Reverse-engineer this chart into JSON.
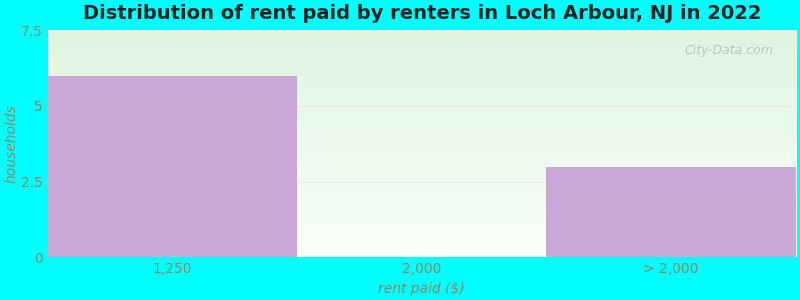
{
  "title": "Distribution of rent paid by renters in Loch Arbour, NJ in 2022",
  "xlabel": "rent paid ($)",
  "ylabel": "households",
  "categories": [
    "1,250",
    "2,000",
    "> 2,000"
  ],
  "values": [
    6,
    0,
    3
  ],
  "bar_color": "#c9a8d8",
  "ylim": [
    0,
    7.5
  ],
  "yticks": [
    0,
    2.5,
    5,
    7.5
  ],
  "bg_color": "#00ffff",
  "gradient_top": "#dff5e0",
  "gradient_bottom": "#f8fff8",
  "title_fontsize": 14,
  "label_fontsize": 10,
  "tick_fontsize": 10,
  "watermark": "City-Data.com",
  "watermark_color": "#bbbbbb"
}
